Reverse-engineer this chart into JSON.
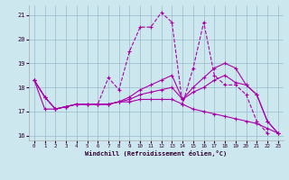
{
  "xlabel": "Windchill (Refroidissement éolien,°C)",
  "xlim": [
    -0.5,
    23.5
  ],
  "ylim": [
    15.8,
    21.4
  ],
  "yticks": [
    16,
    17,
    18,
    19,
    20,
    21
  ],
  "xticks": [
    0,
    1,
    2,
    3,
    4,
    5,
    6,
    7,
    8,
    9,
    10,
    11,
    12,
    13,
    14,
    15,
    16,
    17,
    18,
    19,
    20,
    21,
    22,
    23
  ],
  "bg_color": "#cce8ee",
  "line_color": "#aa00aa",
  "grid_color": "#99bbcc",
  "lines": [
    {
      "y": [
        18.3,
        17.6,
        17.1,
        17.2,
        17.3,
        17.3,
        17.3,
        18.4,
        17.9,
        19.5,
        20.5,
        20.5,
        21.1,
        20.7,
        17.3,
        18.8,
        20.7,
        18.5,
        18.1,
        18.1,
        17.7,
        16.6,
        16.1,
        null
      ],
      "style": "--"
    },
    {
      "y": [
        18.3,
        17.6,
        17.1,
        17.2,
        17.3,
        17.3,
        17.3,
        17.3,
        17.4,
        17.5,
        17.7,
        17.8,
        17.9,
        18.0,
        17.5,
        17.8,
        18.0,
        18.3,
        18.5,
        18.2,
        18.1,
        17.7,
        16.6,
        16.1
      ],
      "style": "-"
    },
    {
      "y": [
        18.3,
        17.6,
        17.1,
        17.2,
        17.3,
        17.3,
        17.3,
        17.3,
        17.4,
        17.6,
        17.9,
        18.1,
        18.3,
        18.5,
        17.5,
        18.0,
        18.4,
        18.8,
        19.0,
        18.8,
        18.1,
        17.7,
        16.6,
        16.1
      ],
      "style": "-"
    },
    {
      "y": [
        18.3,
        17.1,
        17.1,
        17.2,
        17.3,
        17.3,
        17.3,
        17.3,
        17.4,
        17.4,
        17.5,
        17.5,
        17.5,
        17.5,
        17.3,
        17.1,
        17.0,
        16.9,
        16.8,
        16.7,
        16.6,
        16.5,
        16.3,
        16.1
      ],
      "style": "-"
    }
  ]
}
